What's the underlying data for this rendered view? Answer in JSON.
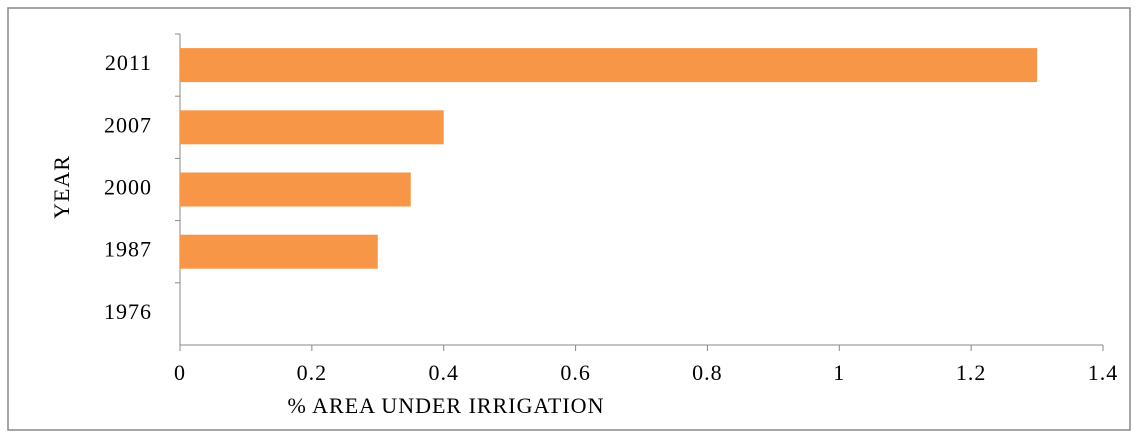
{
  "chart_data": {
    "type": "bar",
    "orientation": "horizontal",
    "categories": [
      "2011",
      "2007",
      "2000",
      "1987",
      "1976"
    ],
    "values": [
      1.3,
      0.4,
      0.35,
      0.3,
      0
    ],
    "color": "#f79646",
    "x_label": "% AREA UNDER IRRIGATION",
    "y_label": "YEAR",
    "xlim": [
      0,
      1.4
    ],
    "xticks": [
      0,
      0.2,
      0.4,
      0.6,
      0.8,
      1,
      1.2,
      1.4
    ],
    "grid": false
  }
}
